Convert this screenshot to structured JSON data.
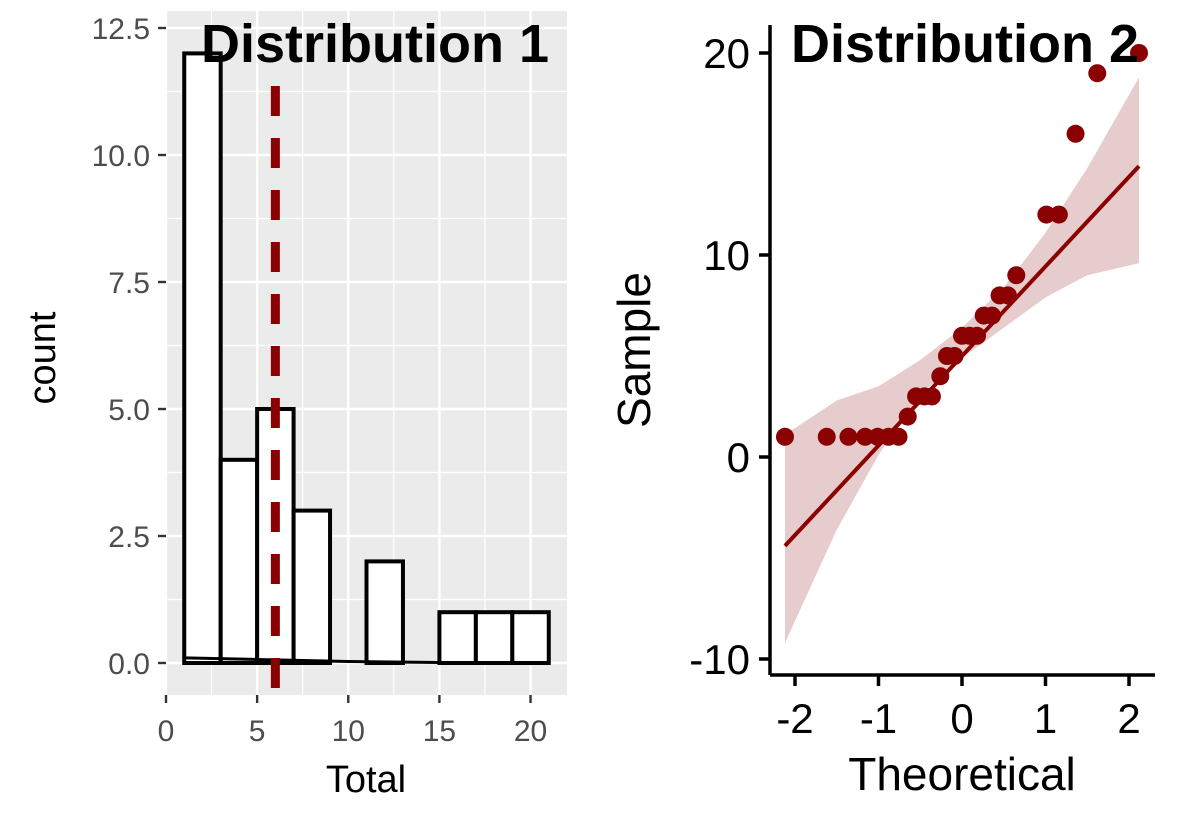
{
  "colors": {
    "panel_bg": "#ebebeb",
    "grid": "#ffffff",
    "bar_fill": "#ffffff",
    "bar_stroke": "#000000",
    "accent": "#8b0000",
    "band": "#e6cccc"
  },
  "chart_data": [
    {
      "type": "bar",
      "subtype": "histogram",
      "title": "Distribution 1",
      "xlabel": "Total",
      "ylabel": "count",
      "xlim": [
        0,
        22
      ],
      "ylim": [
        0,
        12.5
      ],
      "x_ticks": [
        0,
        5,
        10,
        15,
        20
      ],
      "y_ticks": [
        0.0,
        2.5,
        5.0,
        7.5,
        10.0,
        12.5
      ],
      "x_tick_labels": [
        "0",
        "5",
        "10",
        "15",
        "20"
      ],
      "y_tick_labels": [
        "0.0",
        "2.5",
        "5.0",
        "7.5",
        "10.0",
        "12.5"
      ],
      "bins": [
        {
          "start": 1,
          "end": 3,
          "count": 12
        },
        {
          "start": 3,
          "end": 5,
          "count": 4
        },
        {
          "start": 5,
          "end": 7,
          "count": 5
        },
        {
          "start": 7,
          "end": 9,
          "count": 3
        },
        {
          "start": 9,
          "end": 11,
          "count": 0
        },
        {
          "start": 11,
          "end": 13,
          "count": 2
        },
        {
          "start": 13,
          "end": 15,
          "count": 0
        },
        {
          "start": 15,
          "end": 17,
          "count": 1
        },
        {
          "start": 17,
          "end": 19,
          "count": 1
        },
        {
          "start": 19,
          "end": 21,
          "count": 1
        }
      ],
      "vline": {
        "x": 6,
        "style": "dashed",
        "color": "#8b0000"
      },
      "density_curve": [
        [
          1,
          0.1
        ],
        [
          5,
          0.07
        ],
        [
          10,
          0.03
        ],
        [
          15,
          0.01
        ],
        [
          21,
          0.0
        ]
      ],
      "grid": true
    },
    {
      "type": "scatter",
      "subtype": "qq-plot",
      "title": "Distribution 2",
      "xlabel": "Theoretical",
      "ylabel": "Sample",
      "xlim": [
        -2.3,
        2.3
      ],
      "ylim": [
        -10.8,
        21.5
      ],
      "x_ticks": [
        -2,
        -1,
        0,
        1,
        2
      ],
      "y_ticks": [
        -10,
        0,
        10,
        20
      ],
      "x_tick_labels": [
        "-2",
        "-1",
        "0",
        "1",
        "2"
      ],
      "y_tick_labels": [
        "-10",
        "0",
        "10",
        "20"
      ],
      "points": [
        [
          -2.12,
          1
        ],
        [
          -1.62,
          1
        ],
        [
          -1.36,
          1
        ],
        [
          -1.16,
          1
        ],
        [
          -1.01,
          1
        ],
        [
          -0.88,
          1
        ],
        [
          -0.76,
          1
        ],
        [
          -0.65,
          2
        ],
        [
          -0.55,
          3
        ],
        [
          -0.45,
          3
        ],
        [
          -0.36,
          3
        ],
        [
          -0.26,
          4
        ],
        [
          -0.18,
          5
        ],
        [
          -0.09,
          5
        ],
        [
          0.0,
          6
        ],
        [
          0.09,
          6
        ],
        [
          0.18,
          6
        ],
        [
          0.26,
          7
        ],
        [
          0.36,
          7
        ],
        [
          0.45,
          8
        ],
        [
          0.55,
          8
        ],
        [
          0.65,
          9
        ],
        [
          1.01,
          12
        ],
        [
          1.16,
          12
        ],
        [
          1.36,
          16
        ],
        [
          1.62,
          19
        ],
        [
          2.12,
          20
        ]
      ],
      "reference_line": [
        [
          -2.12,
          -4.4
        ],
        [
          2.12,
          14.4
        ]
      ],
      "confidence_band_upper": [
        [
          -2.12,
          1.1
        ],
        [
          -1.5,
          2.8
        ],
        [
          -1.0,
          3.5
        ],
        [
          -0.5,
          4.8
        ],
        [
          0.0,
          6.4
        ],
        [
          0.5,
          8.4
        ],
        [
          1.0,
          11.1
        ],
        [
          1.5,
          14.3
        ],
        [
          2.12,
          18.8
        ]
      ],
      "confidence_band_lower": [
        [
          -2.12,
          -9.2
        ],
        [
          -1.5,
          -3.6
        ],
        [
          -1.0,
          0.1
        ],
        [
          -0.5,
          3.1
        ],
        [
          0.0,
          4.9
        ],
        [
          0.5,
          6.4
        ],
        [
          1.0,
          7.9
        ],
        [
          1.5,
          9.0
        ],
        [
          2.12,
          9.6
        ]
      ],
      "grid": false
    }
  ]
}
